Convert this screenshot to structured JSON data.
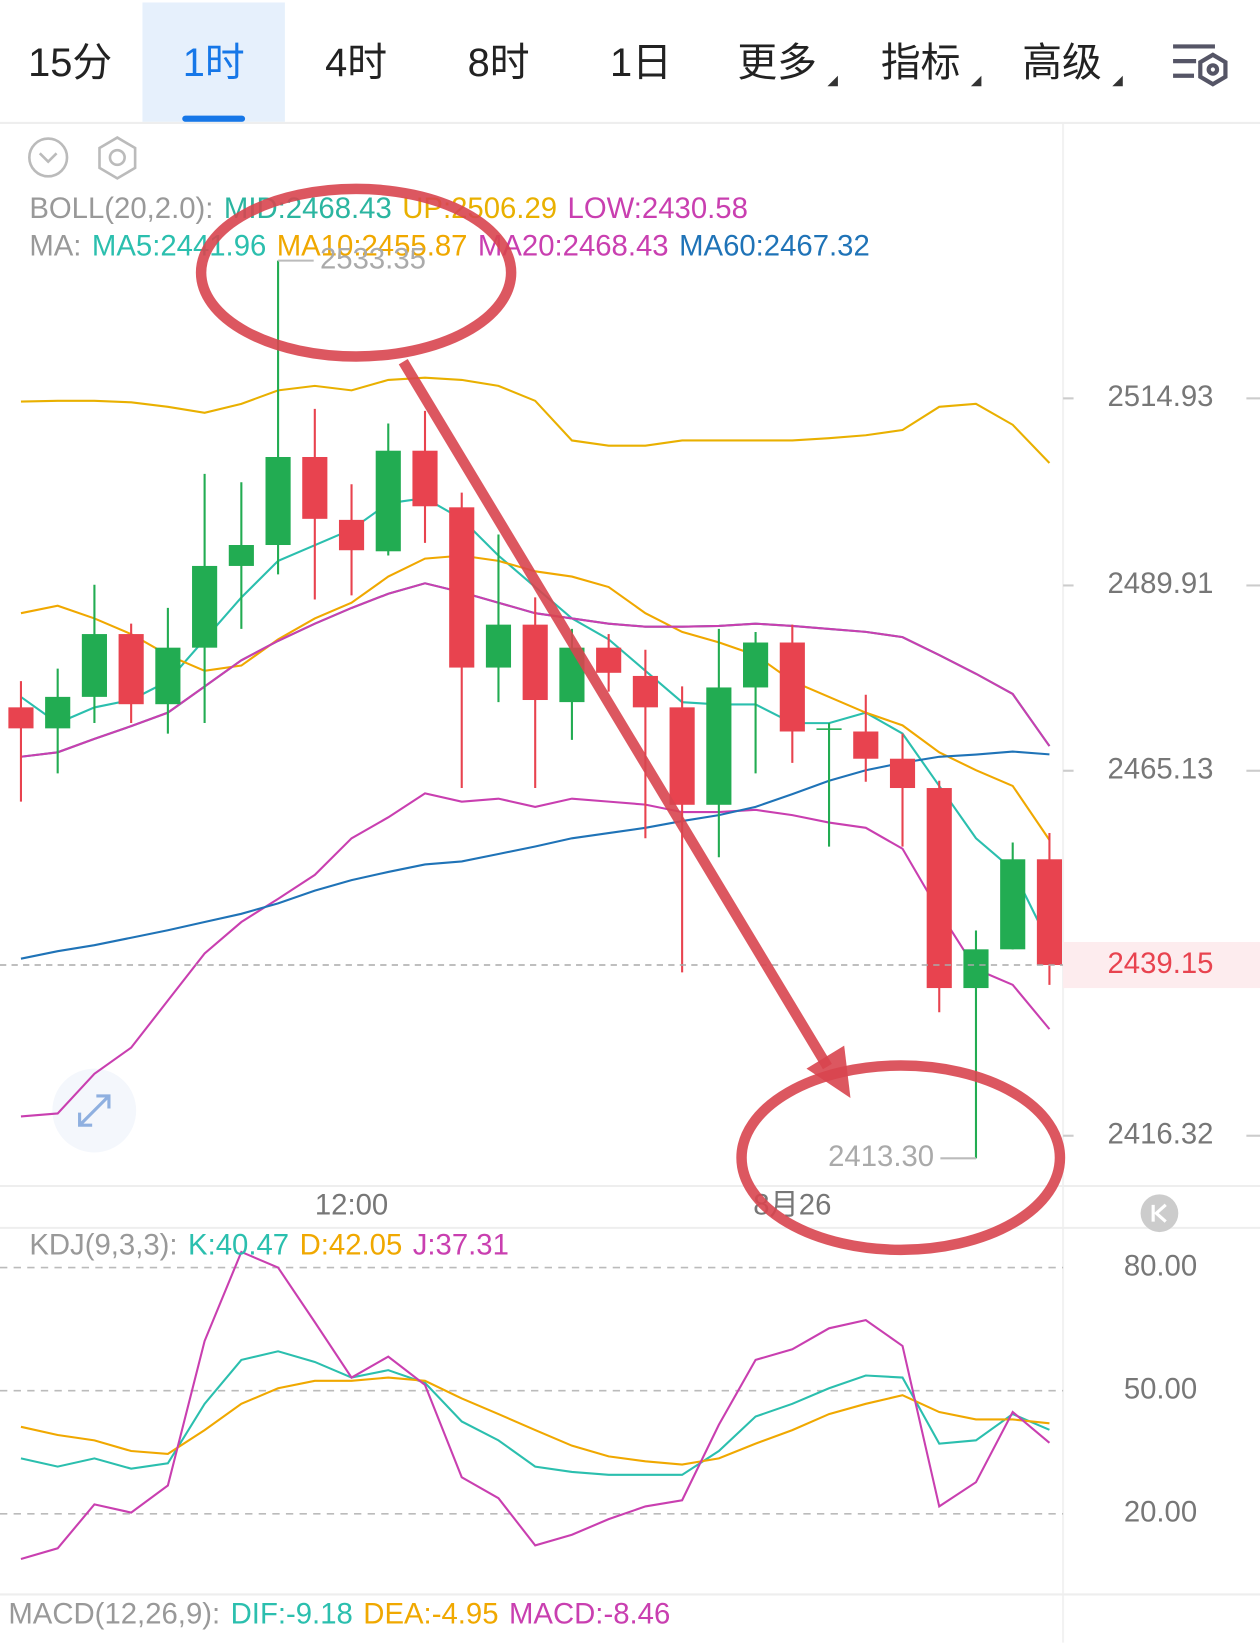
{
  "tabs": [
    {
      "label": "15分"
    },
    {
      "label": "1时",
      "selected": true
    },
    {
      "label": "4时"
    },
    {
      "label": "8时"
    },
    {
      "label": "1日"
    },
    {
      "label": "更多",
      "dropdown": true
    },
    {
      "label": "指标",
      "dropdown": true
    },
    {
      "label": "高级",
      "dropdown": true
    }
  ],
  "macd": {
    "title": "MACD(12,26,9):",
    "items": [
      {
        "text": "DIF:-9.18",
        "color": "#2bbfae"
      },
      {
        "text": "DEA:-4.95",
        "color": "#f0a800"
      },
      {
        "text": "MACD:-8.46",
        "color": "#c93fb0"
      }
    ]
  },
  "chart_data": [
    {
      "type": "candlestick",
      "categories": [
        null,
        null,
        null,
        null,
        null,
        null,
        null,
        null,
        null,
        "12:00",
        null,
        null,
        null,
        null,
        null,
        null,
        null,
        null,
        null,
        null,
        null,
        "8月26",
        null,
        null,
        null,
        null,
        null,
        null,
        null
      ],
      "open": [
        2473.61,
        2470.8,
        2475.01,
        2483.41,
        2474.03,
        2481.59,
        2492.52,
        2495.32,
        2507.09,
        2498.68,
        2494.48,
        2507.93,
        2500.36,
        2478.93,
        2484.67,
        2474.31,
        2481.59,
        2477.81,
        2473.61,
        2460.58,
        2476.27,
        2482.28,
        2470.66,
        2470.38,
        2466.74,
        2462.82,
        2436.07,
        2441.25,
        2453.29
      ],
      "high": [
        2477.11,
        2478.79,
        2490.0,
        2484.81,
        2486.91,
        2504.84,
        2503.72,
        2533.35,
        2513.53,
        2503.44,
        2511.57,
        2513.25,
        2502.32,
        2496.72,
        2488.31,
        2484.11,
        2483.41,
        2481.31,
        2476.41,
        2484.11,
        2483.69,
        2484.67,
        2471.51,
        2475.29,
        2470.1,
        2463.8,
        2443.77,
        2455.54,
        2456.8
      ],
      "low": [
        2461.0,
        2464.78,
        2471.51,
        2471.51,
        2470.1,
        2471.51,
        2484.11,
        2491.4,
        2488.03,
        2488.59,
        2493.92,
        2495.6,
        2462.82,
        2474.31,
        2462.82,
        2469.26,
        2475.71,
        2456.1,
        2438.17,
        2453.57,
        2464.78,
        2466.18,
        2454.98,
        2463.66,
        2454.98,
        2432.84,
        2413.3,
        2441.25,
        2436.49
      ],
      "close": [
        2470.8,
        2475.01,
        2483.41,
        2474.03,
        2481.59,
        2492.52,
        2495.32,
        2507.09,
        2498.82,
        2494.62,
        2507.93,
        2500.5,
        2478.93,
        2484.67,
        2474.59,
        2481.59,
        2478.23,
        2473.61,
        2460.58,
        2476.27,
        2482.28,
        2470.38,
        2470.8,
        2466.74,
        2462.82,
        2436.07,
        2441.25,
        2453.29,
        2439.15
      ],
      "up_color": "#22ac52",
      "down_color": "#e8434f",
      "ylim": [
        2409.88,
        2551.63
      ],
      "yticks": [
        2514.93,
        2489.91,
        2465.13,
        2416.32
      ],
      "high_label": "2533.35",
      "low_label": "2413.30",
      "last_label": "2439.15",
      "overlays": [
        {
          "title": "BOLL(20,2.0):",
          "series": [
            {
              "name": "MID:2468.43",
              "color": "#2bb5a0",
              "values": [
                2467.0,
                2467.6,
                2469.4,
                2471.1,
                2472.9,
                2476.4,
                2479.9,
                2482.5,
                2484.8,
                2486.9,
                2488.8,
                2490.2,
                2489.0,
                2487.6,
                2486.2,
                2485.5,
                2484.8,
                2484.4,
                2484.4,
                2484.5,
                2484.8,
                2484.5,
                2484.1,
                2483.7,
                2483.0,
                2480.6,
                2478.1,
                2475.4,
                2468.43
              ]
            },
            {
              "name": "UP:2506.29",
              "color": "#e9b000",
              "values": [
                2514.5,
                2514.6,
                2514.6,
                2514.4,
                2513.8,
                2513.0,
                2514.2,
                2516.0,
                2516.6,
                2516.0,
                2517.4,
                2517.7,
                2517.4,
                2516.6,
                2514.6,
                2509.3,
                2508.6,
                2508.6,
                2509.3,
                2509.3,
                2509.3,
                2509.3,
                2509.6,
                2510.0,
                2510.7,
                2513.8,
                2514.2,
                2511.4,
                2506.29
              ]
            },
            {
              "name": "LOW:2430.58",
              "color": "#c93fb0",
              "values": [
                2418.9,
                2419.3,
                2424.6,
                2428.1,
                2434.4,
                2440.7,
                2444.9,
                2448.0,
                2451.2,
                2456.1,
                2458.9,
                2462.1,
                2461.0,
                2461.4,
                2460.3,
                2461.4,
                2461.0,
                2460.6,
                2459.6,
                2459.6,
                2459.9,
                2459.2,
                2458.2,
                2457.5,
                2454.7,
                2446.3,
                2438.6,
                2436.5,
                2430.58
              ]
            }
          ]
        },
        {
          "title": "MA:",
          "series": [
            {
              "name": "MA5:2441.96",
              "color": "#2bbfae",
              "values": [
                2475.0,
                2471.5,
                2473.6,
                2474.6,
                2477.1,
                2482.7,
                2488.3,
                2493.2,
                2495.3,
                2497.4,
                2500.9,
                2501.6,
                2498.8,
                2493.9,
                2489.7,
                2485.5,
                2482.7,
                2478.5,
                2474.3,
                2474.0,
                2474.0,
                2471.5,
                2471.5,
                2472.9,
                2470.1,
                2463.1,
                2456.1,
                2451.9,
                2441.96
              ]
            },
            {
              "name": "MA10:2455.87",
              "color": "#f0a800",
              "values": [
                2486.2,
                2487.2,
                2485.5,
                2483.4,
                2480.6,
                2478.5,
                2479.2,
                2482.7,
                2485.5,
                2487.6,
                2491.1,
                2493.5,
                2493.9,
                2493.2,
                2491.8,
                2491.1,
                2489.7,
                2486.2,
                2483.7,
                2482.3,
                2480.6,
                2477.1,
                2475.0,
                2472.9,
                2471.2,
                2467.6,
                2465.2,
                2463.1,
                2455.87
              ]
            },
            {
              "name": "MA20:2468.43",
              "color": "#c93fb0",
              "values": [
                2467.0,
                2467.6,
                2469.4,
                2471.1,
                2472.9,
                2476.4,
                2479.9,
                2482.5,
                2484.8,
                2486.9,
                2488.8,
                2490.2,
                2489.0,
                2487.6,
                2486.2,
                2485.5,
                2484.8,
                2484.4,
                2484.4,
                2484.5,
                2484.8,
                2484.5,
                2484.1,
                2483.7,
                2483.0,
                2480.6,
                2478.1,
                2475.4,
                2468.43
              ]
            },
            {
              "name": "MA60:2467.32",
              "color": "#1f73b7",
              "values": [
                2440.0,
                2441.0,
                2441.8,
                2442.8,
                2443.8,
                2444.9,
                2446.0,
                2447.4,
                2449.1,
                2450.5,
                2451.6,
                2452.6,
                2453.0,
                2454.0,
                2455.0,
                2456.1,
                2456.8,
                2457.5,
                2458.4,
                2459.2,
                2460.3,
                2462.0,
                2463.8,
                2465.2,
                2466.2,
                2467.0,
                2467.3,
                2467.7,
                2467.32
              ]
            }
          ]
        }
      ]
    },
    {
      "type": "line",
      "title": "KDJ(9,3,3):",
      "ylim": [
        0.86,
        88.9
      ],
      "yticks": [
        {
          "value": 80,
          "label": "80.00"
        },
        {
          "value": 50,
          "label": "50.00"
        },
        {
          "value": 20,
          "label": "20.00"
        }
      ],
      "grid": true,
      "series": [
        {
          "name": "K:40.47",
          "color": "#2bbfae",
          "values": [
            33.5,
            31.5,
            33.5,
            31.0,
            32.3,
            46.8,
            57.5,
            59.6,
            57.0,
            53.2,
            55.0,
            51.9,
            42.5,
            37.9,
            31.5,
            30.2,
            29.5,
            29.5,
            29.5,
            35.3,
            43.7,
            46.8,
            50.6,
            53.7,
            53.2,
            37.1,
            37.9,
            44.3,
            40.47
          ]
        },
        {
          "name": "D:42.05",
          "color": "#f0a800",
          "values": [
            41.2,
            39.2,
            37.9,
            35.3,
            34.6,
            40.4,
            46.8,
            50.6,
            52.4,
            52.4,
            53.2,
            52.4,
            48.1,
            44.3,
            40.4,
            36.6,
            34.0,
            32.8,
            32.0,
            33.5,
            37.1,
            40.4,
            44.3,
            46.8,
            48.9,
            44.8,
            43.0,
            43.0,
            42.05
          ]
        },
        {
          "name": "J:37.31",
          "color": "#c93fb0",
          "values": [
            9.0,
            11.6,
            22.3,
            20.3,
            26.9,
            62.1,
            83.8,
            80.0,
            66.7,
            53.2,
            58.3,
            51.4,
            28.9,
            23.8,
            12.3,
            14.9,
            18.7,
            21.8,
            23.3,
            41.7,
            57.5,
            60.1,
            65.2,
            67.2,
            60.9,
            21.8,
            27.7,
            44.8,
            37.31
          ]
        }
      ]
    }
  ]
}
